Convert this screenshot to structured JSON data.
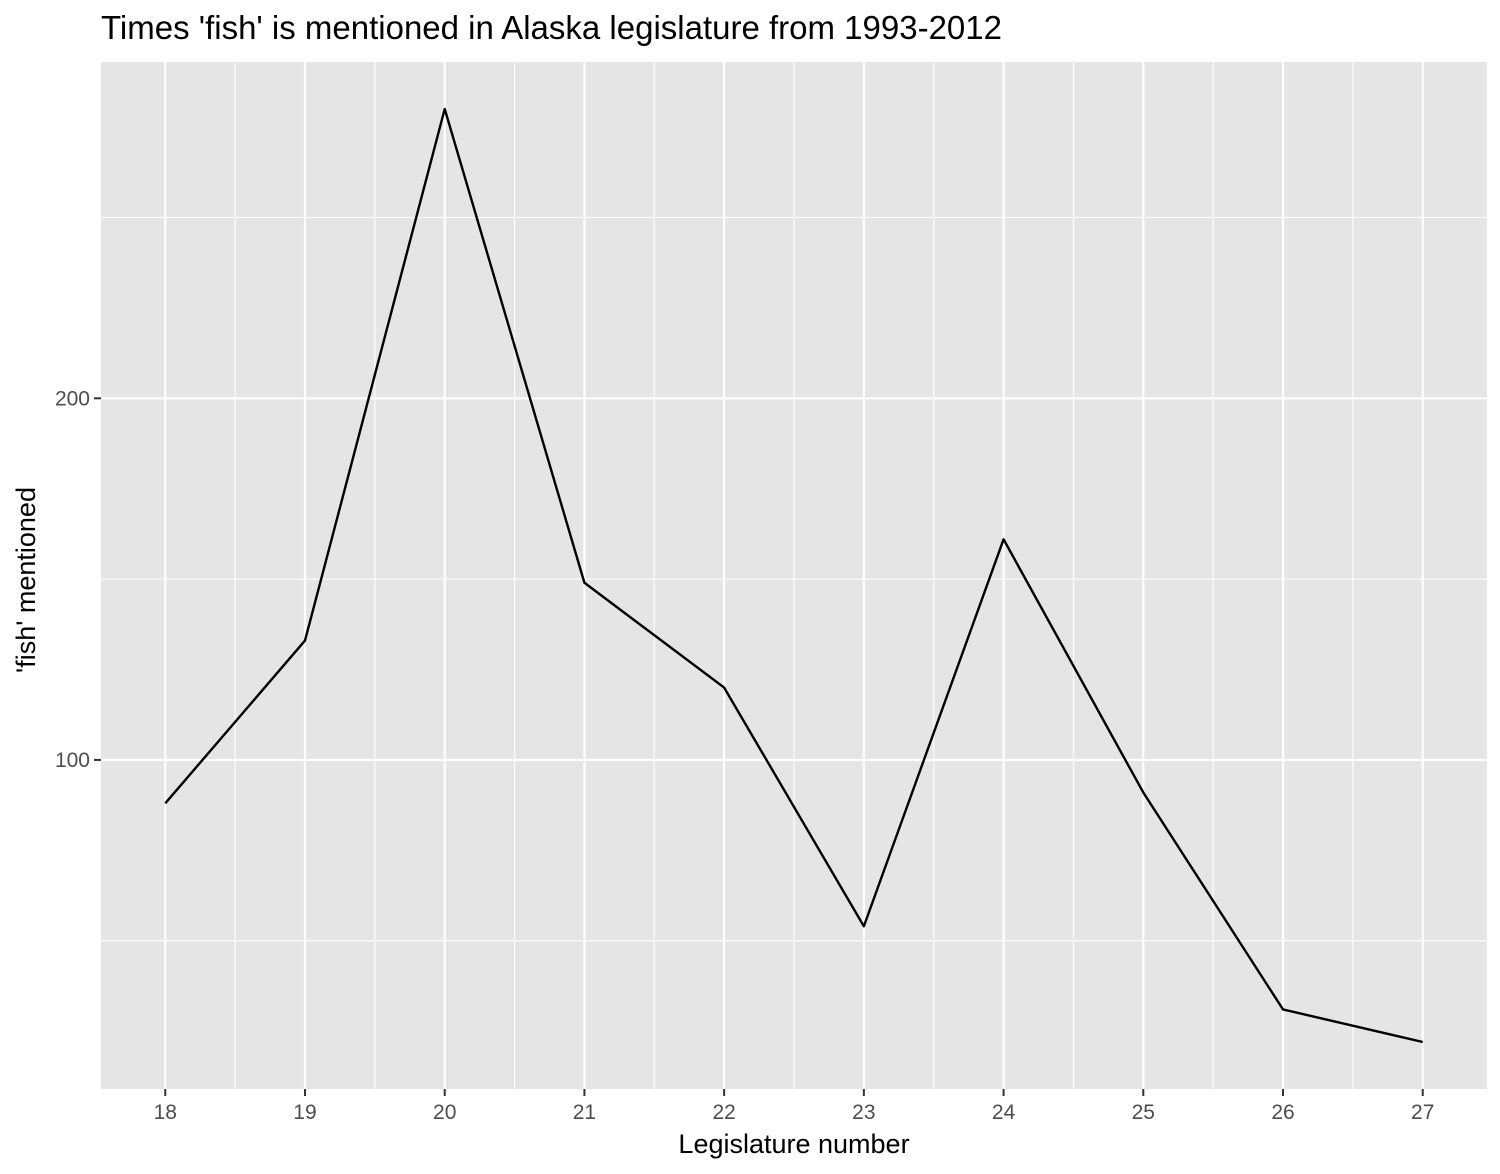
{
  "chart_data": {
    "type": "line",
    "title": "Times 'fish' is mentioned in Alaska legislature from 1993-2012",
    "xlabel": "Legislature number",
    "ylabel": "'fish' mentioned",
    "x": [
      18,
      19,
      20,
      21,
      22,
      23,
      24,
      25,
      26,
      27
    ],
    "series": [
      {
        "values": [
          88,
          133,
          280,
          149,
          120,
          54,
          161,
          91,
          31,
          22
        ]
      }
    ],
    "x_ticks": [
      18,
      19,
      20,
      21,
      22,
      23,
      24,
      25,
      26,
      27
    ],
    "y_ticks": [
      100,
      200
    ],
    "xlim": [
      17.54,
      27.46
    ],
    "ylim": [
      9,
      293
    ],
    "grid": true,
    "colors": {
      "panel": "#e5e5e5",
      "grid": "#ffffff",
      "line": "#000000",
      "tick": "#333333"
    }
  }
}
